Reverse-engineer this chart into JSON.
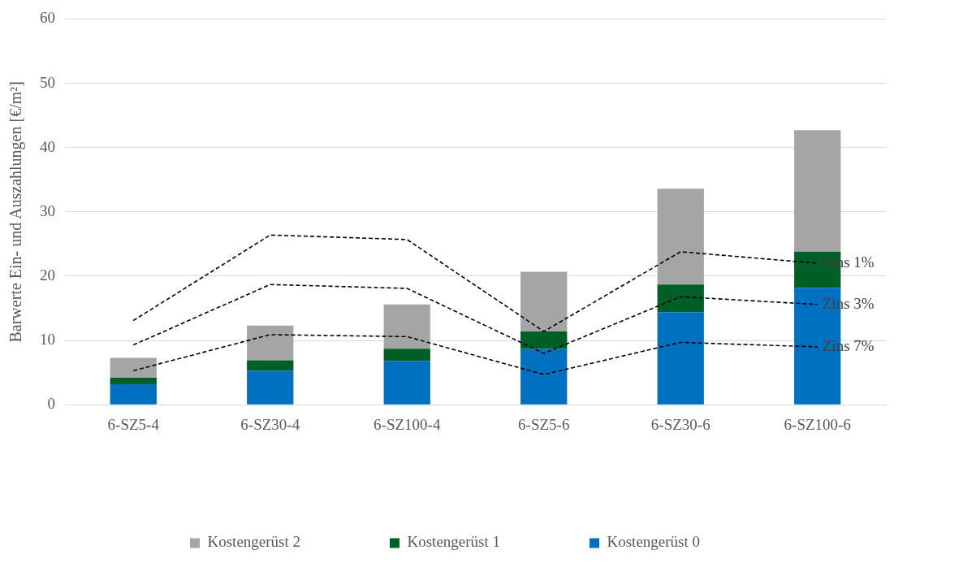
{
  "chart_data": {
    "type": "bar",
    "stacked": true,
    "ylabel": "Barwerte Ein- und Auszahlungen [€/m²]",
    "categories": [
      "6-SZ5-4",
      "6-SZ30-4",
      "6-SZ100-4",
      "6-SZ5-6",
      "6-SZ30-6",
      "6-SZ100-6"
    ],
    "series": [
      {
        "name": "Kostengerüst 0",
        "color": "#0070c0",
        "values": [
          3.2,
          5.3,
          6.8,
          8.7,
          14.4,
          18.2
        ]
      },
      {
        "name": "Kostengerüst 1",
        "color": "#005f27",
        "values": [
          1.0,
          1.6,
          1.9,
          2.7,
          4.3,
          5.6
        ]
      },
      {
        "name": "Kostengerüst 2",
        "color": "#a5a5a5",
        "values": [
          3.1,
          5.4,
          6.9,
          9.3,
          14.9,
          18.9
        ]
      },
      {
        "name": "Zins 1%",
        "type": "line",
        "color": "#000000",
        "line_style": "dashed",
        "values": [
          13.1,
          26.4,
          25.7,
          11.4,
          23.8,
          22.0
        ]
      },
      {
        "name": "Zins 3%",
        "type": "line",
        "color": "#000000",
        "line_style": "dashed",
        "values": [
          9.3,
          18.7,
          18.1,
          8.0,
          16.8,
          15.6
        ]
      },
      {
        "name": "Zins 7%",
        "type": "line",
        "color": "#000000",
        "line_style": "dashed",
        "values": [
          5.3,
          10.9,
          10.6,
          4.7,
          9.7,
          9.0
        ]
      }
    ],
    "ylim": [
      0,
      60
    ],
    "yticks": [
      0,
      10,
      20,
      30,
      40,
      50,
      60
    ],
    "grid": "y",
    "legend": "bottom",
    "marker": "none"
  }
}
